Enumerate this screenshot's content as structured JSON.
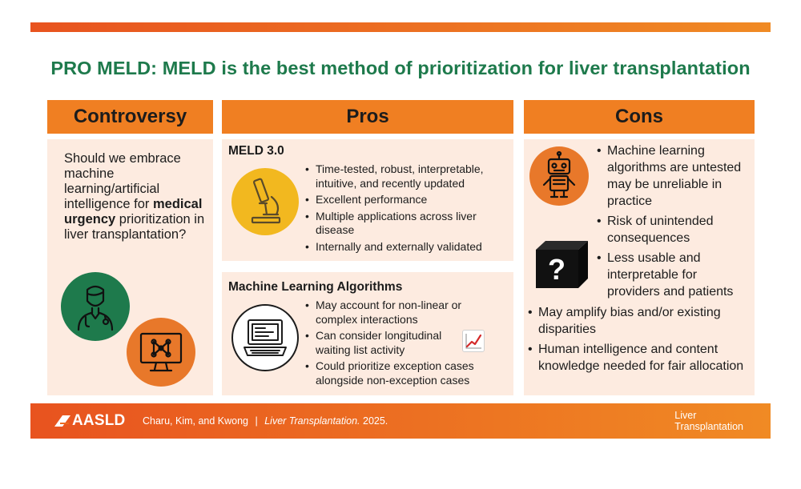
{
  "title": "PRO MELD: MELD is the best method of prioritization for liver transplantation",
  "columns": {
    "controversy": "Controversy",
    "pros": "Pros",
    "cons": "Cons"
  },
  "controversy": {
    "text_before": "Should we embrace machine learning/artificial intelligence for ",
    "text_bold": "medical urgency",
    "text_after": " prioritization in liver transplantation?",
    "icons": [
      "doctor-icon",
      "neural-network-monitor-icon"
    ]
  },
  "pros": {
    "meld": {
      "title": "MELD 3.0",
      "icon": "microscope-icon",
      "items": [
        "Time-tested, robust, interpretable, intuitive, and recently updated",
        "Excellent performance",
        "Multiple applications across liver disease",
        "Internally and externally validated"
      ]
    },
    "ml": {
      "title": "Machine Learning Algorithms",
      "icon": "computer-icon",
      "items": [
        "May account for non-linear or complex interactions",
        "Can consider longitudinal waiting list activity",
        "Could prioritize exception cases alongside non-exception cases"
      ],
      "trend_icon": "chart-increasing-icon"
    }
  },
  "cons": {
    "icons": [
      "robot-icon",
      "black-box-question-icon"
    ],
    "items_indented": [
      "Machine learning algorithms are untested may be unreliable in practice",
      "Risk of unintended consequences",
      "Less usable and interpretable for providers and patients"
    ],
    "items": [
      "May amplify bias and/or existing disparities",
      "Human intelligence and content knowledge needed for fair allocation"
    ]
  },
  "footer": {
    "logo": "AASLD",
    "authors": "Charu, Kim, and Kwong",
    "separator": "|",
    "journal": "Liver Transplantation.",
    "year": "2025.",
    "journal_logo_line1": "Liver",
    "journal_logo_line2": "Transplantation"
  },
  "colors": {
    "orange": "#f07f22",
    "panel": "#fdebe0",
    "green": "#1e7a4c",
    "yellow": "#f2b81f"
  }
}
